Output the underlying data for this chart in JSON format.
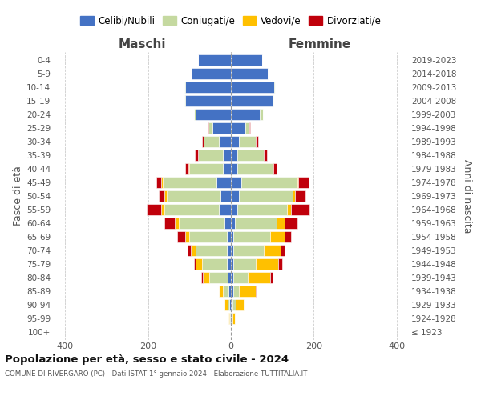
{
  "age_groups": [
    "100+",
    "95-99",
    "90-94",
    "85-89",
    "80-84",
    "75-79",
    "70-74",
    "65-69",
    "60-64",
    "55-59",
    "50-54",
    "45-49",
    "40-44",
    "35-39",
    "30-34",
    "25-29",
    "20-24",
    "15-19",
    "10-14",
    "5-9",
    "0-4"
  ],
  "birth_years": [
    "≤ 1923",
    "1924-1928",
    "1929-1933",
    "1934-1938",
    "1939-1943",
    "1944-1948",
    "1949-1953",
    "1954-1958",
    "1959-1963",
    "1964-1968",
    "1969-1973",
    "1974-1978",
    "1979-1983",
    "1984-1988",
    "1989-1993",
    "1994-1998",
    "1999-2003",
    "2004-2008",
    "2009-2013",
    "2014-2018",
    "2019-2023"
  ],
  "males": {
    "celibi": [
      0,
      1,
      3,
      5,
      8,
      10,
      10,
      10,
      15,
      30,
      25,
      35,
      20,
      20,
      30,
      45,
      85,
      110,
      110,
      95,
      80
    ],
    "coniugati": [
      0,
      2,
      5,
      15,
      45,
      60,
      75,
      90,
      110,
      130,
      130,
      130,
      80,
      60,
      35,
      10,
      5,
      2,
      2,
      0,
      0
    ],
    "vedovi": [
      0,
      2,
      8,
      10,
      15,
      15,
      12,
      10,
      10,
      8,
      5,
      3,
      2,
      0,
      0,
      0,
      0,
      0,
      0,
      0,
      0
    ],
    "divorziati": [
      0,
      0,
      0,
      0,
      3,
      5,
      8,
      20,
      25,
      35,
      15,
      12,
      8,
      8,
      5,
      2,
      0,
      0,
      0,
      0,
      0
    ]
  },
  "females": {
    "nubili": [
      0,
      1,
      3,
      5,
      5,
      5,
      5,
      5,
      10,
      15,
      20,
      25,
      15,
      15,
      20,
      35,
      70,
      100,
      105,
      90,
      75
    ],
    "coniugate": [
      0,
      3,
      8,
      15,
      35,
      55,
      75,
      90,
      100,
      120,
      130,
      135,
      85,
      65,
      40,
      10,
      8,
      2,
      2,
      0,
      0
    ],
    "vedove": [
      0,
      5,
      20,
      40,
      55,
      55,
      40,
      35,
      20,
      10,
      5,
      3,
      2,
      0,
      0,
      0,
      0,
      0,
      0,
      0,
      0
    ],
    "divorziate": [
      0,
      0,
      0,
      2,
      5,
      8,
      10,
      15,
      30,
      45,
      25,
      25,
      8,
      8,
      5,
      2,
      0,
      0,
      0,
      0,
      0
    ]
  },
  "colors": {
    "celibi": "#4472c4",
    "coniugati": "#c5d9a0",
    "vedovi": "#ffc000",
    "divorziati": "#c0000b"
  },
  "xlim": 430,
  "title_main": "Popolazione per età, sesso e stato civile - 2024",
  "title_sub": "COMUNE DI RIVERGARO (PC) - Dati ISTAT 1° gennaio 2024 - Elaborazione TUTTITALIA.IT",
  "ylabel_left": "Fasce di età",
  "ylabel_right": "Anni di nascita",
  "xlabel_maschi": "Maschi",
  "xlabel_femmine": "Femmine",
  "legend_labels": [
    "Celibi/Nubili",
    "Coniugati/e",
    "Vedovi/e",
    "Divorziati/e"
  ]
}
